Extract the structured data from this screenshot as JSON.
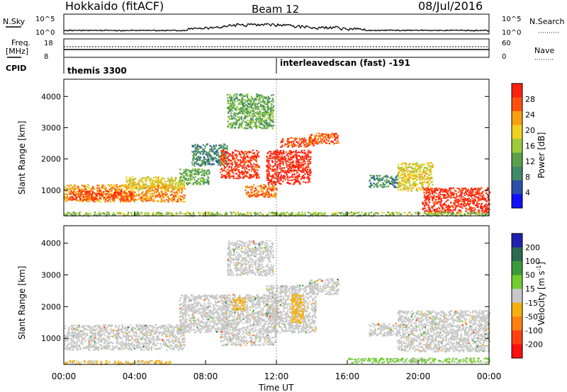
{
  "header": {
    "station": "Hokkaido (fitACF)",
    "beam": "Beam 12",
    "date": "08/Jul/2016"
  },
  "panels": {
    "nsky_label": "N.Sky",
    "nsky_ticks": [
      "10^5",
      "10^0"
    ],
    "nsearch_label": "N.Search",
    "freq_label_1": "Freq.",
    "freq_label_2": "[MHz]",
    "freq_ticks": [
      "18",
      "8"
    ],
    "nave_label": "Nave",
    "nave_ticks": [
      "60",
      "0"
    ],
    "cpid_label": "CPID",
    "cpid_segments": [
      {
        "name": "themis 3300",
        "start_hour": 0
      },
      {
        "name": "interleavedscan (fast) -191",
        "start_hour": 12
      }
    ]
  },
  "colors": {
    "power": [
      "#1010ff",
      "#2a50a8",
      "#3f8a6a",
      "#5aa04a",
      "#9ccc3c",
      "#f0d020",
      "#f5a010",
      "#ff5010",
      "#ff2010"
    ],
    "velocity": [
      "#2020b0",
      "#2a6a50",
      "#3a9a3a",
      "#70cc30",
      "#c8c8c8",
      "#f5b010",
      "#ff8010",
      "#ff4010",
      "#ff1010"
    ],
    "grey_scatter": "#c8c8c8"
  },
  "chart_data": [
    {
      "type": "heatmap",
      "title": "",
      "xlabel": "Time UT",
      "ylabel": "Slant Range [km]",
      "x_ticks": [
        "00:00",
        "04:00",
        "08:00",
        "12:00",
        "16:00",
        "20:00",
        "00:00"
      ],
      "xlim_hours": [
        0,
        24
      ],
      "y_ticks": [
        "1000",
        "2000",
        "3000",
        "4000"
      ],
      "ylim": [
        180,
        4550
      ],
      "colorbar_label": "Power [dB]",
      "colorbar_ticks": [
        "28",
        "24",
        "20",
        "16",
        "12",
        "8",
        "4"
      ],
      "colorbar_range": [
        0,
        30
      ],
      "regions": [
        {
          "t0": 0.0,
          "t1": 6.8,
          "r0": 650,
          "r1": 1200,
          "value": 22
        },
        {
          "t0": 0.3,
          "t1": 4.0,
          "r0": 700,
          "r1": 1000,
          "value": 26
        },
        {
          "t0": 3.5,
          "t1": 6.8,
          "r0": 1050,
          "r1": 1450,
          "value": 18
        },
        {
          "t0": 6.5,
          "t1": 8.2,
          "r0": 1200,
          "r1": 1700,
          "value": 12
        },
        {
          "t0": 7.2,
          "t1": 9.2,
          "r0": 1800,
          "r1": 2500,
          "value": 9
        },
        {
          "t0": 8.8,
          "t1": 11.0,
          "r0": 1400,
          "r1": 2300,
          "value": 27
        },
        {
          "t0": 10.2,
          "t1": 12.0,
          "r0": 800,
          "r1": 1200,
          "value": 24
        },
        {
          "t0": 11.4,
          "t1": 13.9,
          "r0": 1200,
          "r1": 2300,
          "value": 29
        },
        {
          "t0": 12.2,
          "t1": 14.2,
          "r0": 2400,
          "r1": 2700,
          "value": 26
        },
        {
          "t0": 13.8,
          "t1": 15.5,
          "r0": 2500,
          "r1": 2850,
          "value": 25
        },
        {
          "t0": 9.2,
          "t1": 11.8,
          "r0": 3000,
          "r1": 4100,
          "value": 12
        },
        {
          "t0": 17.2,
          "t1": 18.8,
          "r0": 1100,
          "r1": 1500,
          "value": 9
        },
        {
          "t0": 18.8,
          "t1": 20.8,
          "r0": 1000,
          "r1": 1900,
          "value": 18
        },
        {
          "t0": 20.2,
          "t1": 24.0,
          "r0": 300,
          "r1": 1100,
          "value": 28
        },
        {
          "t0": 0.0,
          "t1": 24.0,
          "r0": 200,
          "r1": 320,
          "value": 14
        }
      ]
    },
    {
      "type": "heatmap",
      "title": "",
      "xlabel": "Time UT",
      "ylabel": "Slant Range [km]",
      "x_ticks": [
        "00:00",
        "04:00",
        "08:00",
        "12:00",
        "16:00",
        "20:00",
        "00:00"
      ],
      "xlim_hours": [
        0,
        24
      ],
      "y_ticks": [
        "1000",
        "2000",
        "3000",
        "4000"
      ],
      "ylim": [
        180,
        4550
      ],
      "colorbar_label": "Velocity [m s^-1]",
      "colorbar_ticks": [
        "200",
        "100",
        "50",
        "15",
        "-15",
        "-50",
        "-100",
        "-200"
      ],
      "colorbar_range": [
        -250,
        250
      ],
      "regions": [
        {
          "t0": 0.0,
          "t1": 6.8,
          "r0": 650,
          "r1": 1450,
          "value": 0
        },
        {
          "t0": 6.5,
          "t1": 9.2,
          "r0": 1200,
          "r1": 2400,
          "value": 0
        },
        {
          "t0": 8.8,
          "t1": 12.0,
          "r0": 800,
          "r1": 2400,
          "value": 0
        },
        {
          "t0": 11.4,
          "t1": 14.2,
          "r0": 1200,
          "r1": 2700,
          "value": 0
        },
        {
          "t0": 13.8,
          "t1": 15.5,
          "r0": 2400,
          "r1": 2900,
          "value": 0
        },
        {
          "t0": 9.2,
          "t1": 11.8,
          "r0": 3000,
          "r1": 4100,
          "value": 0
        },
        {
          "t0": 17.2,
          "t1": 18.8,
          "r0": 1100,
          "r1": 1500,
          "value": 0
        },
        {
          "t0": 18.8,
          "t1": 24.0,
          "r0": 600,
          "r1": 1900,
          "value": 0
        },
        {
          "t0": 12.8,
          "t1": 13.5,
          "r0": 1500,
          "r1": 2400,
          "value": -60
        },
        {
          "t0": 9.5,
          "t1": 10.2,
          "r0": 1900,
          "r1": 2300,
          "value": -40
        },
        {
          "t0": 16.0,
          "t1": 24.0,
          "r0": 250,
          "r1": 400,
          "value": 40
        },
        {
          "t0": 0.0,
          "t1": 6.0,
          "r0": 200,
          "r1": 320,
          "value": -30
        }
      ]
    }
  ]
}
